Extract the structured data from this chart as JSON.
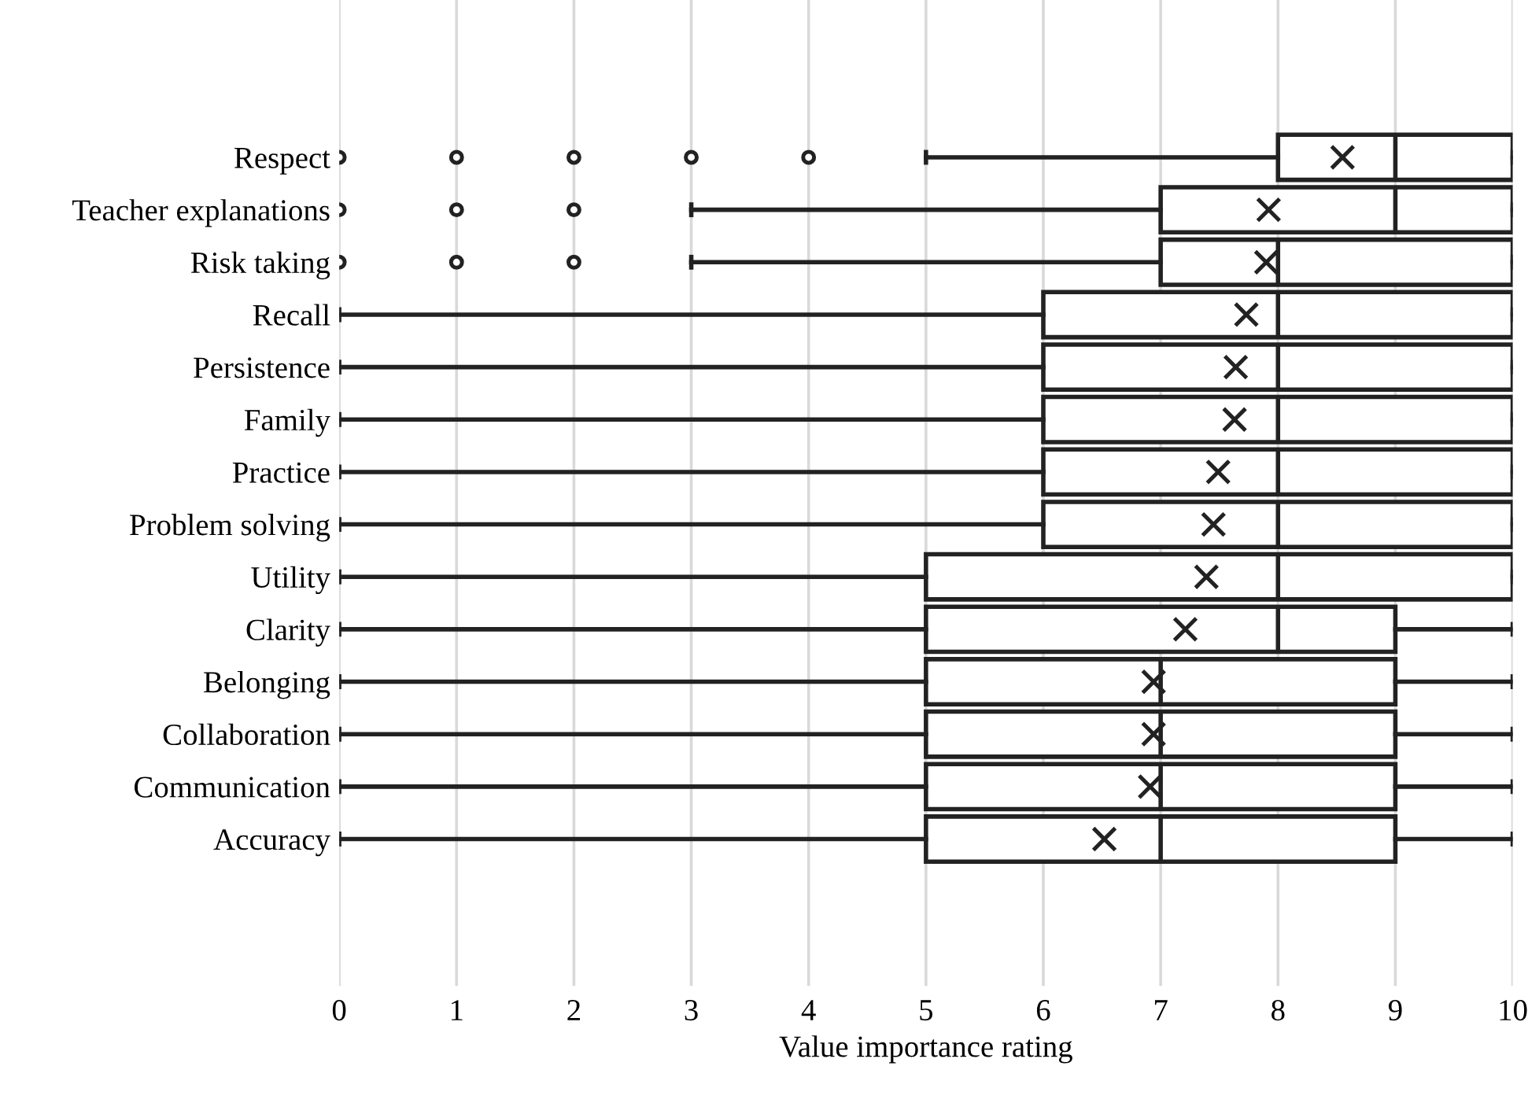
{
  "chart_data": {
    "type": "box",
    "orientation": "horizontal",
    "xlabel": "Value importance rating",
    "categories": [
      "Respect",
      "Teacher explanations",
      "Risk taking",
      "Recall",
      "Persistence",
      "Family",
      "Practice",
      "Problem solving",
      "Utility",
      "Clarity",
      "Belonging",
      "Collaboration",
      "Communication",
      "Accuracy"
    ],
    "boxes": [
      {
        "low": 5,
        "q1": 8,
        "median": 9,
        "q3": 10,
        "high": 10,
        "mean": 8.55,
        "outliers": [
          0,
          1,
          2,
          3,
          4
        ]
      },
      {
        "low": 3,
        "q1": 7,
        "median": 9,
        "q3": 10,
        "high": 10,
        "mean": 7.92,
        "outliers": [
          0,
          1,
          2
        ]
      },
      {
        "low": 3,
        "q1": 7,
        "median": 8,
        "q3": 10,
        "high": 10,
        "mean": 7.9,
        "outliers": [
          0,
          1,
          2
        ]
      },
      {
        "low": 0,
        "q1": 6,
        "median": 8,
        "q3": 10,
        "high": 10,
        "mean": 7.73
      },
      {
        "low": 0,
        "q1": 6,
        "median": 8,
        "q3": 10,
        "high": 10,
        "mean": 7.64
      },
      {
        "low": 0,
        "q1": 6,
        "median": 8,
        "q3": 10,
        "high": 10,
        "mean": 7.63
      },
      {
        "low": 0,
        "q1": 6,
        "median": 8,
        "q3": 10,
        "high": 10,
        "mean": 7.49
      },
      {
        "low": 0,
        "q1": 6,
        "median": 8,
        "q3": 10,
        "high": 10,
        "mean": 7.45
      },
      {
        "low": 0,
        "q1": 5,
        "median": 8,
        "q3": 10,
        "high": 10,
        "mean": 7.39
      },
      {
        "low": 0,
        "q1": 5,
        "median": 8,
        "q3": 9,
        "high": 10,
        "mean": 7.21
      },
      {
        "low": 0,
        "q1": 5,
        "median": 7,
        "q3": 9,
        "high": 10,
        "mean": 6.94
      },
      {
        "low": 0,
        "q1": 5,
        "median": 7,
        "q3": 9,
        "high": 10,
        "mean": 6.94
      },
      {
        "low": 0,
        "q1": 5,
        "median": 7,
        "q3": 9,
        "high": 10,
        "mean": 6.91
      },
      {
        "low": 0,
        "q1": 5,
        "median": 7,
        "q3": 9,
        "high": 10,
        "mean": 6.52
      }
    ],
    "xlim": [
      0,
      10
    ],
    "xticks": [
      0,
      1,
      2,
      3,
      4,
      5,
      6,
      7,
      8,
      9,
      10
    ],
    "grid": "x",
    "legend": false,
    "marker": "cross"
  }
}
